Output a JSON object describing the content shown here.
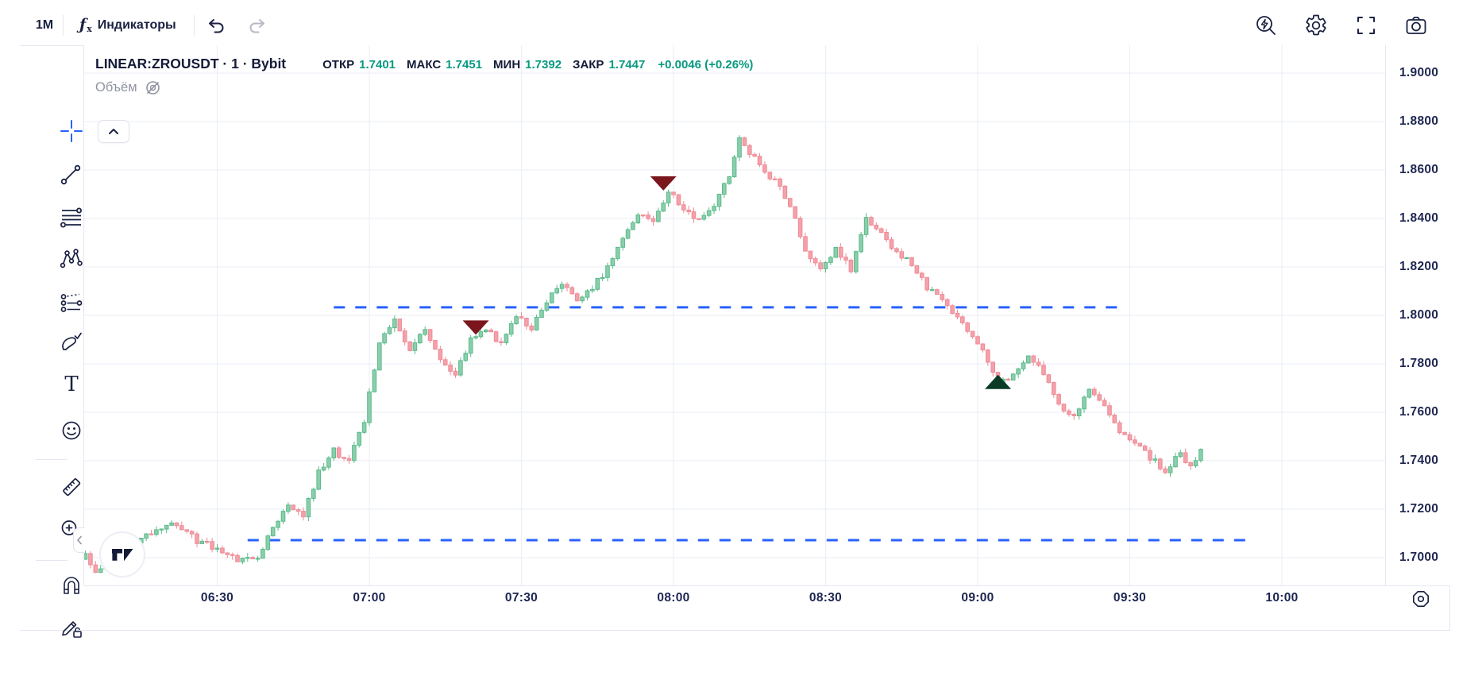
{
  "toolbar": {
    "timeframe_label": "1М",
    "indicators_label": "Индикаторы",
    "left_icons": [
      "fx-icon",
      "undo-icon",
      "redo-icon"
    ],
    "right_icons": [
      "quick-search-icon",
      "settings-gear-icon",
      "fullscreen-icon",
      "snapshot-camera-icon"
    ]
  },
  "legend": {
    "title": "LINEAR:ZROUSDT · 1 · Bybit",
    "ohlc": [
      {
        "label": "ОТКР",
        "value": "1.7401"
      },
      {
        "label": "МАКС",
        "value": "1.7451"
      },
      {
        "label": "МИН",
        "value": "1.7392"
      },
      {
        "label": "ЗАКР",
        "value": "1.7447"
      }
    ],
    "change": "+0.0046 (+0.26%)",
    "volume_label": "Объём"
  },
  "colors": {
    "accent_blue": "#2962ff",
    "value_green": "#089981",
    "text_navy": "#1a2142",
    "muted_grey": "#787b86",
    "disabled_grey": "#b7bac6",
    "border": "#e4e7f0",
    "grid": "#e9edf6",
    "candle_up_fill": "#8BCEAC",
    "candle_up_stroke": "#5ABB8A",
    "candle_down_fill": "#F4A1AA",
    "candle_down_stroke": "#EF8B96",
    "marker_sell": "#7A161C",
    "marker_buy": "#0B3B24",
    "dashed_line": "#2962ff"
  },
  "chart_data": {
    "type": "candlestick",
    "symbol": "LINEAR:ZROUSDT",
    "exchange": "Bybit",
    "interval": "1",
    "last_candle": {
      "open": 1.7401,
      "high": 1.7451,
      "low": 1.7392,
      "close": 1.7447
    },
    "price_axis": {
      "labels": [
        "1.9000",
        "1.8800",
        "1.8600",
        "1.8400",
        "1.8200",
        "1.8000",
        "1.7800",
        "1.7600",
        "1.7400",
        "1.7200",
        "1.7000"
      ],
      "max": 1.9,
      "min": 1.7,
      "step": 0.02
    },
    "time_axis": {
      "labels": [
        "06:30",
        "07:00",
        "07:30",
        "08:00",
        "08:30",
        "09:00",
        "09:30",
        "10:00"
      ],
      "first_label_minutes": 390,
      "step_minutes": 30
    },
    "anchors": [
      [
        364,
        1.7005
      ],
      [
        366,
        1.6935
      ],
      [
        370,
        1.7
      ],
      [
        374,
        1.706
      ],
      [
        378,
        1.7125
      ],
      [
        382,
        1.7135
      ],
      [
        386,
        1.707
      ],
      [
        390,
        1.704
      ],
      [
        394,
        1.6995
      ],
      [
        398,
        1.7005
      ],
      [
        401,
        1.712
      ],
      [
        404,
        1.722
      ],
      [
        407,
        1.7175
      ],
      [
        410,
        1.735
      ],
      [
        413,
        1.744
      ],
      [
        416,
        1.7395
      ],
      [
        419,
        1.757
      ],
      [
        422,
        1.789
      ],
      [
        425,
        1.7975
      ],
      [
        428,
        1.7865
      ],
      [
        431,
        1.7945
      ],
      [
        434,
        1.781
      ],
      [
        437,
        1.7765
      ],
      [
        440,
        1.7895
      ],
      [
        443,
        1.794
      ],
      [
        446,
        1.788
      ],
      [
        449,
        1.7995
      ],
      [
        452,
        1.7945
      ],
      [
        455,
        1.8055
      ],
      [
        458,
        1.8135
      ],
      [
        461,
        1.8055
      ],
      [
        464,
        1.8115
      ],
      [
        467,
        1.8195
      ],
      [
        470,
        1.8315
      ],
      [
        473,
        1.8415
      ],
      [
        476,
        1.8375
      ],
      [
        479,
        1.8515
      ],
      [
        482,
        1.8435
      ],
      [
        485,
        1.8385
      ],
      [
        488,
        1.8455
      ],
      [
        491,
        1.858
      ],
      [
        493,
        1.8735
      ],
      [
        495,
        1.8675
      ],
      [
        497,
        1.8615
      ],
      [
        500,
        1.8555
      ],
      [
        503,
        1.8455
      ],
      [
        506,
        1.8265
      ],
      [
        509,
        1.8195
      ],
      [
        512,
        1.8275
      ],
      [
        515,
        1.8185
      ],
      [
        518,
        1.8395
      ],
      [
        521,
        1.8335
      ],
      [
        524,
        1.8255
      ],
      [
        527,
        1.8215
      ],
      [
        530,
        1.8115
      ],
      [
        533,
        1.8055
      ],
      [
        536,
        1.7995
      ],
      [
        539,
        1.7915
      ],
      [
        542,
        1.7815
      ],
      [
        544,
        1.7705
      ],
      [
        547,
        1.7765
      ],
      [
        550,
        1.7835
      ],
      [
        553,
        1.7755
      ],
      [
        556,
        1.7635
      ],
      [
        559,
        1.7575
      ],
      [
        562,
        1.7695
      ],
      [
        565,
        1.7615
      ],
      [
        568,
        1.7515
      ],
      [
        571,
        1.7475
      ],
      [
        574,
        1.7415
      ],
      [
        577,
        1.7355
      ],
      [
        580,
        1.7435
      ],
      [
        582,
        1.7375
      ],
      [
        584,
        1.7447
      ]
    ],
    "markers": [
      {
        "time": "07:21",
        "minutes": 441,
        "price": 1.792,
        "side": "sell"
      },
      {
        "time": "07:58",
        "minutes": 478,
        "price": 1.8515,
        "side": "sell"
      },
      {
        "time": "09:04",
        "minutes": 544,
        "price": 1.7755,
        "side": "buy"
      }
    ],
    "dashed_lines": [
      {
        "price": 1.8033,
        "from_minutes": 413,
        "to_minutes": 568
      },
      {
        "price": 1.7072,
        "from_minutes": 396,
        "to_minutes": 594
      }
    ]
  }
}
